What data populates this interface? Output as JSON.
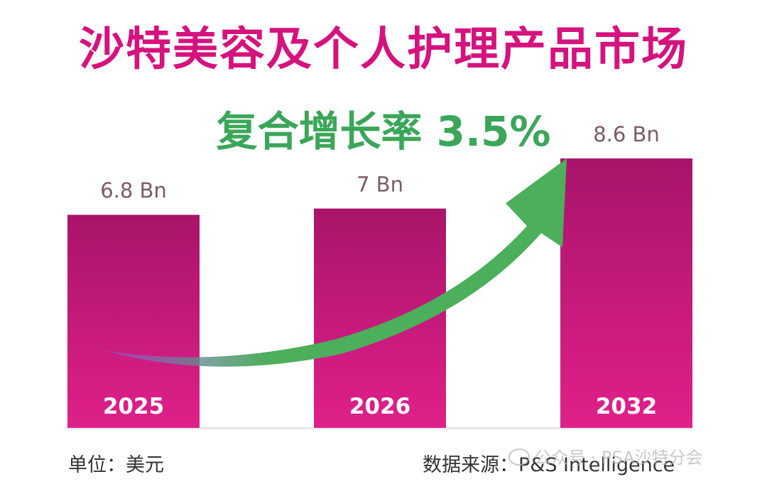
{
  "title": "沙特美容及个人护理产品市场",
  "subtitle": "复合增长率 3.5%",
  "colors": {
    "title": "#d4137e",
    "subtitle": "#3ba659",
    "bar_top": "#a8146a",
    "bar_bottom": "#e0208a",
    "value_label": "#7a5c66",
    "arrow": "#4caf5b",
    "arrow_tail": "#8a5ad8"
  },
  "chart_data": {
    "type": "bar",
    "title": "沙特美容及个人护理产品市场",
    "subtitle": "复合增长率 3.5%",
    "categories": [
      "2025",
      "2026",
      "2032"
    ],
    "values": [
      6.8,
      7,
      8.6
    ],
    "value_labels": [
      "6.8 Bn",
      "7 Bn",
      "8.6 Bn"
    ],
    "unit": "Bn",
    "ylim": [
      0,
      9.8
    ],
    "xlabel": "",
    "ylabel": "",
    "grid": false,
    "annotation": "growth-arrow"
  },
  "footer": {
    "unit_label": "单位：美元",
    "source_label": "数据来源：P&S Intelligence",
    "watermark": "公众号 · PSA沙特分会"
  }
}
